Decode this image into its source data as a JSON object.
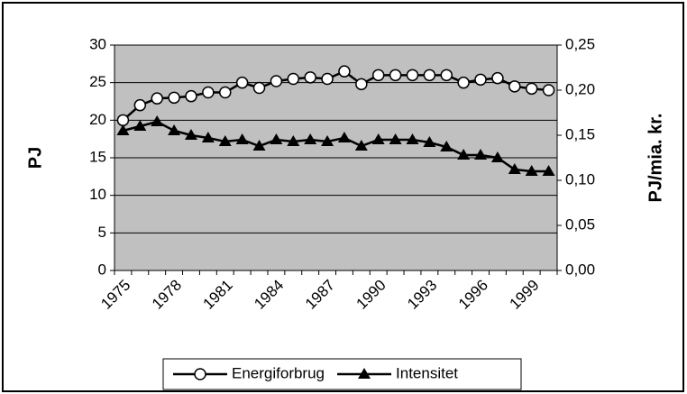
{
  "chart_data": {
    "type": "line",
    "categories": [
      "1975",
      null,
      null,
      "1978",
      null,
      null,
      "1981",
      null,
      null,
      "1984",
      null,
      null,
      "1987",
      null,
      null,
      "1990",
      null,
      null,
      "1993",
      null,
      null,
      "1996",
      null,
      null,
      "1999",
      null
    ],
    "y_label": "PJ",
    "y2_label": "PJ/mia. kr.",
    "ylim": [
      0,
      30
    ],
    "yticks": [
      0,
      5,
      10,
      15,
      20,
      25,
      30
    ],
    "y2lim": [
      0,
      0.25
    ],
    "y2ticks": [
      {
        "value": 0,
        "label": "0,00"
      },
      {
        "value": 0.05,
        "label": "0,05"
      },
      {
        "value": 0.1,
        "label": "0,10"
      },
      {
        "value": 0.15,
        "label": "0,15"
      },
      {
        "value": 0.2,
        "label": "0,20"
      },
      {
        "value": 0.25,
        "label": "0,25"
      }
    ],
    "grid": true,
    "background": "#c0c0c0",
    "legend": "bottom",
    "series": [
      {
        "name": "Energiforbrug",
        "color": "#000000",
        "marker": "circle",
        "values": [
          20,
          22,
          22.9,
          23,
          23.2,
          23.7,
          23.7,
          25,
          24.3,
          25.2,
          25.5,
          25.7,
          25.5,
          26.5,
          24.8,
          26,
          26,
          26,
          26,
          26,
          25,
          25.4,
          25.6,
          24.5,
          24.2,
          24
        ]
      },
      {
        "name": "Intensitet",
        "color": "#000000",
        "marker": "triangle",
        "axis": "y2",
        "values": [
          0.155,
          0.16,
          0.165,
          0.155,
          0.15,
          0.147,
          0.143,
          0.145,
          0.138,
          0.145,
          0.143,
          0.145,
          0.143,
          0.147,
          0.138,
          0.145,
          0.145,
          0.145,
          0.142,
          0.137,
          0.128,
          0.128,
          0.125,
          0.112,
          0.11,
          0.11
        ]
      }
    ]
  }
}
